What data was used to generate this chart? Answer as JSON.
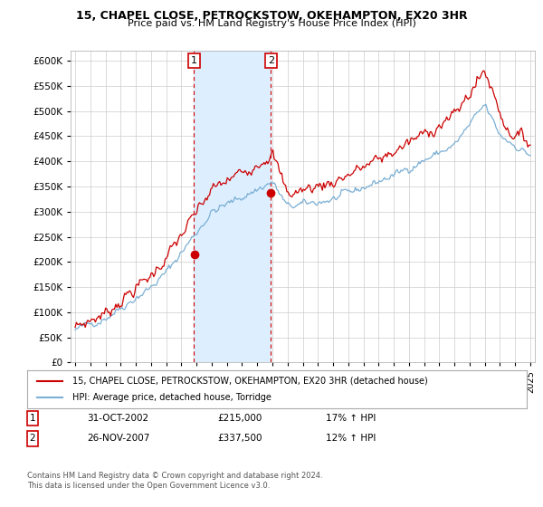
{
  "title1": "15, CHAPEL CLOSE, PETROCKSTOW, OKEHAMPTON, EX20 3HR",
  "title2": "Price paid vs. HM Land Registry's House Price Index (HPI)",
  "legend_line1": "15, CHAPEL CLOSE, PETROCKSTOW, OKEHAMPTON, EX20 3HR (detached house)",
  "legend_line2": "HPI: Average price, detached house, Torridge",
  "transaction1_date": "31-OCT-2002",
  "transaction1_price": "£215,000",
  "transaction1_hpi": "17% ↑ HPI",
  "transaction1_year": 2002.83,
  "transaction1_value": 215000,
  "transaction2_date": "26-NOV-2007",
  "transaction2_price": "£337,500",
  "transaction2_hpi": "12% ↑ HPI",
  "transaction2_year": 2007.9,
  "transaction2_value": 337500,
  "red_color": "#cc0000",
  "blue_color": "#7bafd4",
  "shading_color": "#ddeeff",
  "background_color": "#ffffff",
  "grid_color": "#cccccc",
  "ylim": [
    0,
    620000
  ],
  "yticks": [
    0,
    50000,
    100000,
    150000,
    200000,
    250000,
    300000,
    350000,
    400000,
    450000,
    500000,
    550000,
    600000
  ],
  "footnote1": "Contains HM Land Registry data © Crown copyright and database right 2024.",
  "footnote2": "This data is licensed under the Open Government Licence v3.0."
}
